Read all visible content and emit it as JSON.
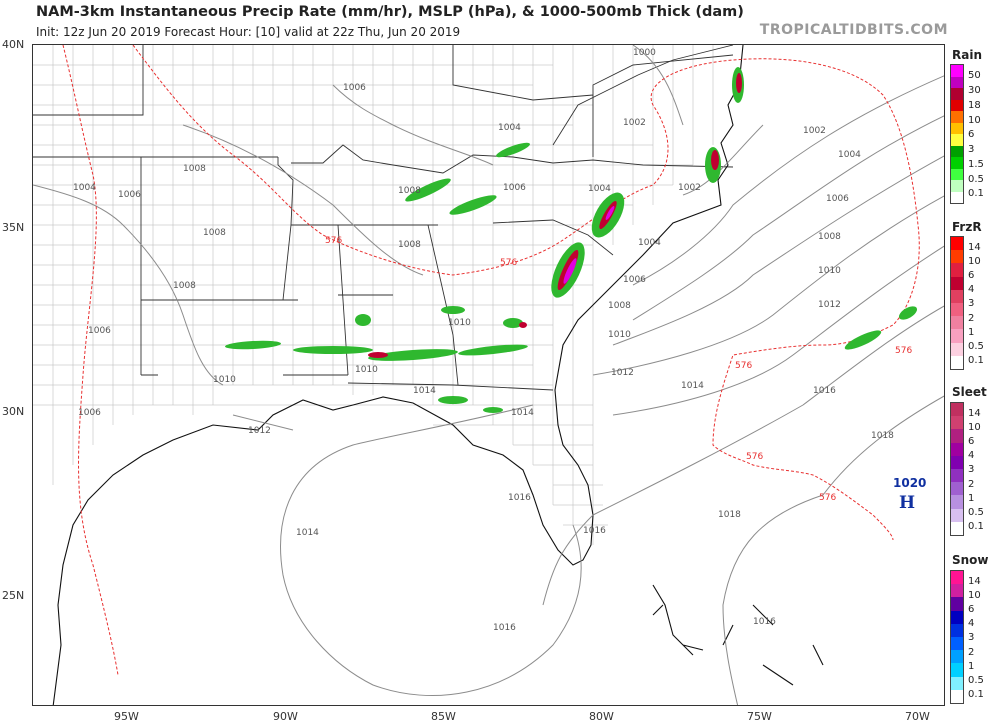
{
  "header": {
    "title": "NAM-3km Instantaneous Precip Rate (mm/hr), MSLP (hPa), & 1000-500mb Thick (dam)",
    "subtitle": "Init: 12z Jun 20 2019   Forecast Hour: [10]   valid at 22z Thu, Jun 20 2019",
    "brand": "TROPICALTIDBITS.COM"
  },
  "axes": {
    "latitudes": [
      "40N",
      "35N",
      "30N",
      "25N"
    ],
    "longitudes": [
      "95W",
      "90W",
      "85W",
      "80W",
      "75W",
      "70W"
    ]
  },
  "isobar_labels": [
    "1000",
    "1002",
    "1004",
    "1006",
    "1008",
    "1010",
    "1012",
    "1014",
    "1016",
    "1018"
  ],
  "thickness_label": "576",
  "high_pressure": {
    "value": "1020",
    "symbol": "H"
  },
  "legends": [
    {
      "title": "Rain",
      "ticks": [
        "50",
        "30",
        "18",
        "10",
        "6",
        "3",
        "1.5",
        "0.5",
        "0.1"
      ],
      "colors": [
        "#ff00ff",
        "#c000c0",
        "#b00030",
        "#e00000",
        "#ff7000",
        "#ffc000",
        "#ffff40",
        "#00a000",
        "#00d000",
        "#40ff40",
        "#c0ffc0",
        "#ffffff"
      ]
    },
    {
      "title": "FrzR",
      "ticks": [
        "14",
        "10",
        "6",
        "4",
        "3",
        "2",
        "1",
        "0.5",
        "0.1"
      ],
      "colors": [
        "#ff0000",
        "#ff3c00",
        "#e02040",
        "#c00030",
        "#e04060",
        "#f06080",
        "#f080a0",
        "#f8a0c0",
        "#fcd0e0",
        "#ffffff"
      ]
    },
    {
      "title": "Sleet",
      "ticks": [
        "14",
        "10",
        "6",
        "4",
        "3",
        "2",
        "1",
        "0.5",
        "0.1"
      ],
      "colors": [
        "#c03060",
        "#d04070",
        "#b02080",
        "#a000a0",
        "#8000b0",
        "#9030c0",
        "#a060d0",
        "#b890e0",
        "#d8c0f0",
        "#ffffff"
      ]
    },
    {
      "title": "Snow",
      "ticks": [
        "14",
        "10",
        "6",
        "4",
        "3",
        "2",
        "1",
        "0.5",
        "0.1"
      ],
      "colors": [
        "#ff1493",
        "#d020a0",
        "#6000a0",
        "#0000c0",
        "#0030e0",
        "#0060ff",
        "#00a0ff",
        "#00d0ff",
        "#80f0ff",
        "#ffffff"
      ]
    }
  ]
}
